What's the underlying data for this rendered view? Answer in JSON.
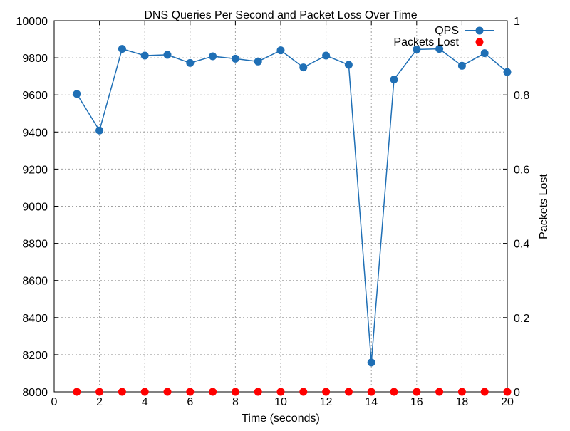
{
  "chart_data": {
    "type": "line",
    "title": "DNS Queries Per Second and Packet Loss Over Time",
    "xlabel": "Time (seconds)",
    "ylabel": "",
    "y2label": "Packets Lost",
    "xlim": [
      0,
      20
    ],
    "ylim": [
      8000,
      10000
    ],
    "y2lim": [
      0,
      1
    ],
    "x_ticks": [
      0,
      2,
      4,
      6,
      8,
      10,
      12,
      14,
      16,
      18,
      20
    ],
    "y_ticks": [
      8000,
      8200,
      8400,
      8600,
      8800,
      9000,
      9200,
      9400,
      9600,
      9800,
      10000
    ],
    "y2_ticks": [
      0,
      0.2,
      0.4,
      0.6,
      0.8,
      1
    ],
    "grid": true,
    "legend_position": "top-right",
    "x": [
      1,
      2,
      3,
      4,
      5,
      6,
      7,
      8,
      9,
      10,
      11,
      12,
      13,
      14,
      15,
      16,
      17,
      18,
      19,
      20
    ],
    "series": [
      {
        "name": "QPS",
        "axis": "left",
        "style": "line-points",
        "color": "#1f6fb5",
        "values": [
          9605,
          9408,
          9848,
          9812,
          9816,
          9772,
          9808,
          9795,
          9780,
          9840,
          9748,
          9812,
          9762,
          8158,
          9683,
          9845,
          9848,
          9757,
          9825,
          9723
        ]
      },
      {
        "name": "Packets Lost",
        "axis": "right",
        "style": "points",
        "color": "#ff0000",
        "values": [
          0,
          0,
          0,
          0,
          0,
          0,
          0,
          0,
          0,
          0,
          0,
          0,
          0,
          0,
          0,
          0,
          0,
          0,
          0,
          0
        ]
      }
    ]
  }
}
